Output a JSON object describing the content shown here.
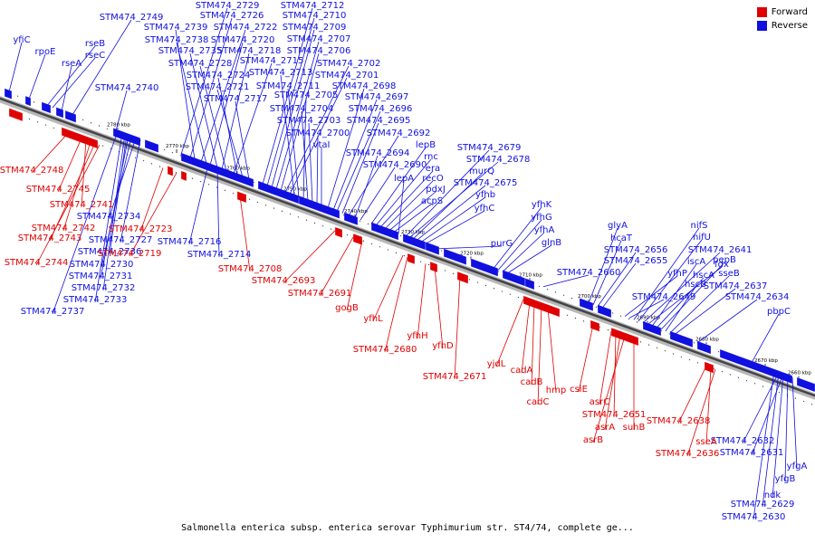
{
  "legend": {
    "forward_label": "Forward",
    "reverse_label": "Reverse",
    "forward_color": "#e00000",
    "reverse_color": "#1010e0"
  },
  "caption": "Salmonella enterica subsp. enterica serovar Typhimurium str. ST4/74, complete ge...",
  "ruler": {
    "ticks": [
      "2780 kbp",
      "2770 kbp",
      "2760 kbp",
      "2750 kbp",
      "2740 kbp",
      "2730 kbp",
      "2720 kbp",
      "2710 kbp",
      "2700 kbp",
      "2690 kbp",
      "2680 kbp",
      "2670 kbp",
      "2660 kbp"
    ]
  },
  "reverse_labels": [
    "yfiC",
    "rpoE",
    "rseB",
    "rseC",
    "rseA",
    "STM474_2749",
    "STM474_2740",
    "STM474_2729",
    "STM474_2726",
    "STM474_2739",
    "STM474_2722",
    "STM474_2738",
    "STM474_2720",
    "STM474_2735",
    "STM474_2718",
    "STM474_2728",
    "STM474_2715",
    "STM474_2724",
    "STM474_2721",
    "STM474_2717",
    "STM474_2712",
    "STM474_2710",
    "STM474_2709",
    "STM474_2707",
    "STM474_2706",
    "STM474_2702",
    "STM474_2701",
    "STM474_2713",
    "STM474_2711",
    "STM474_2705",
    "STM474_2704",
    "STM474_2703",
    "STM474_2700",
    "vtaI",
    "STM474_2698",
    "STM474_2697",
    "STM474_2696",
    "STM474_2695",
    "STM474_2692",
    "STM474_2694",
    "STM474_2690",
    "lepB",
    "rnc",
    "era",
    "recO",
    "pdxJ",
    "acpS",
    "lepA",
    "STM474_2679",
    "STM474_2678",
    "murQ",
    "STM474_2675",
    "yfhb",
    "yfhC",
    "purG",
    "yfhK",
    "yfhG",
    "yfhA",
    "glnB",
    "STM474_2660",
    "glyA",
    "hcaT",
    "STM474_2656",
    "STM474_2655",
    "yfhP",
    "STM474_2649",
    "nifS",
    "nifU",
    "STM474_2641",
    "fdx",
    "iscA",
    "hscA",
    "pepB",
    "hscB",
    "sseB",
    "STM474_2637",
    "STM474_2634",
    "pbpC",
    "STM474_2734",
    "STM474_2727",
    "STM474_2736",
    "STM474_2730",
    "STM474_2731",
    "STM474_2732",
    "STM474_2733",
    "STM474_2737",
    "STM474_2716",
    "STM474_2714",
    "STM474_2632",
    "STM474_2631",
    "yfgA",
    "yfgB",
    "ndk",
    "STM474_2629",
    "STM474_2630"
  ],
  "forward_labels": [
    "STM474_2748",
    "STM474_2745",
    "STM474_2741",
    "STM474_2742",
    "STM474_2743",
    "STM474_2744",
    "STM474_2723",
    "STM474_2719",
    "STM474_2708",
    "STM474_2693",
    "STM474_2691",
    "gogB",
    "yfhL",
    "STM474_2680",
    "yfhH",
    "yfhD",
    "STM474_2671",
    "yjdL",
    "cadA",
    "cadB",
    "hmp",
    "cadC",
    "csiE",
    "asrC",
    "STM474_2651",
    "asrA",
    "asrB",
    "suhB",
    "STM474_2638",
    "sseA",
    "STM474_2636"
  ]
}
